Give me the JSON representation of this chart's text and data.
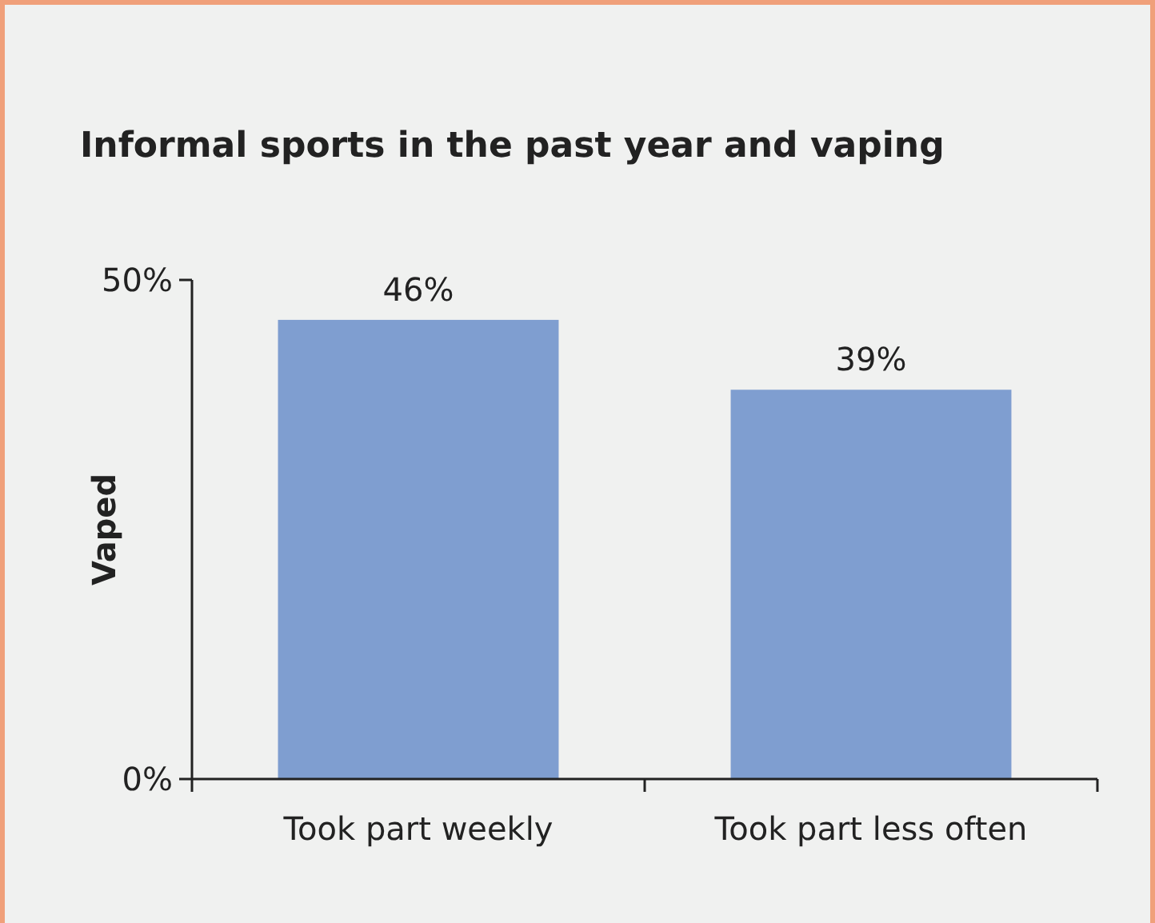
{
  "chart_data": {
    "type": "bar",
    "title": "Informal sports in the past year and vaping",
    "ylabel": "Vaped",
    "categories": [
      "Took part weekly",
      "Took part less often"
    ],
    "values": [
      46,
      39
    ],
    "value_labels": [
      "46%",
      "39%"
    ],
    "color": "#7f9ed0",
    "ylim": [
      0,
      50
    ],
    "yticks": [
      {
        "value": 0,
        "label": "0%"
      },
      {
        "value": 50,
        "label": "50%"
      }
    ]
  }
}
